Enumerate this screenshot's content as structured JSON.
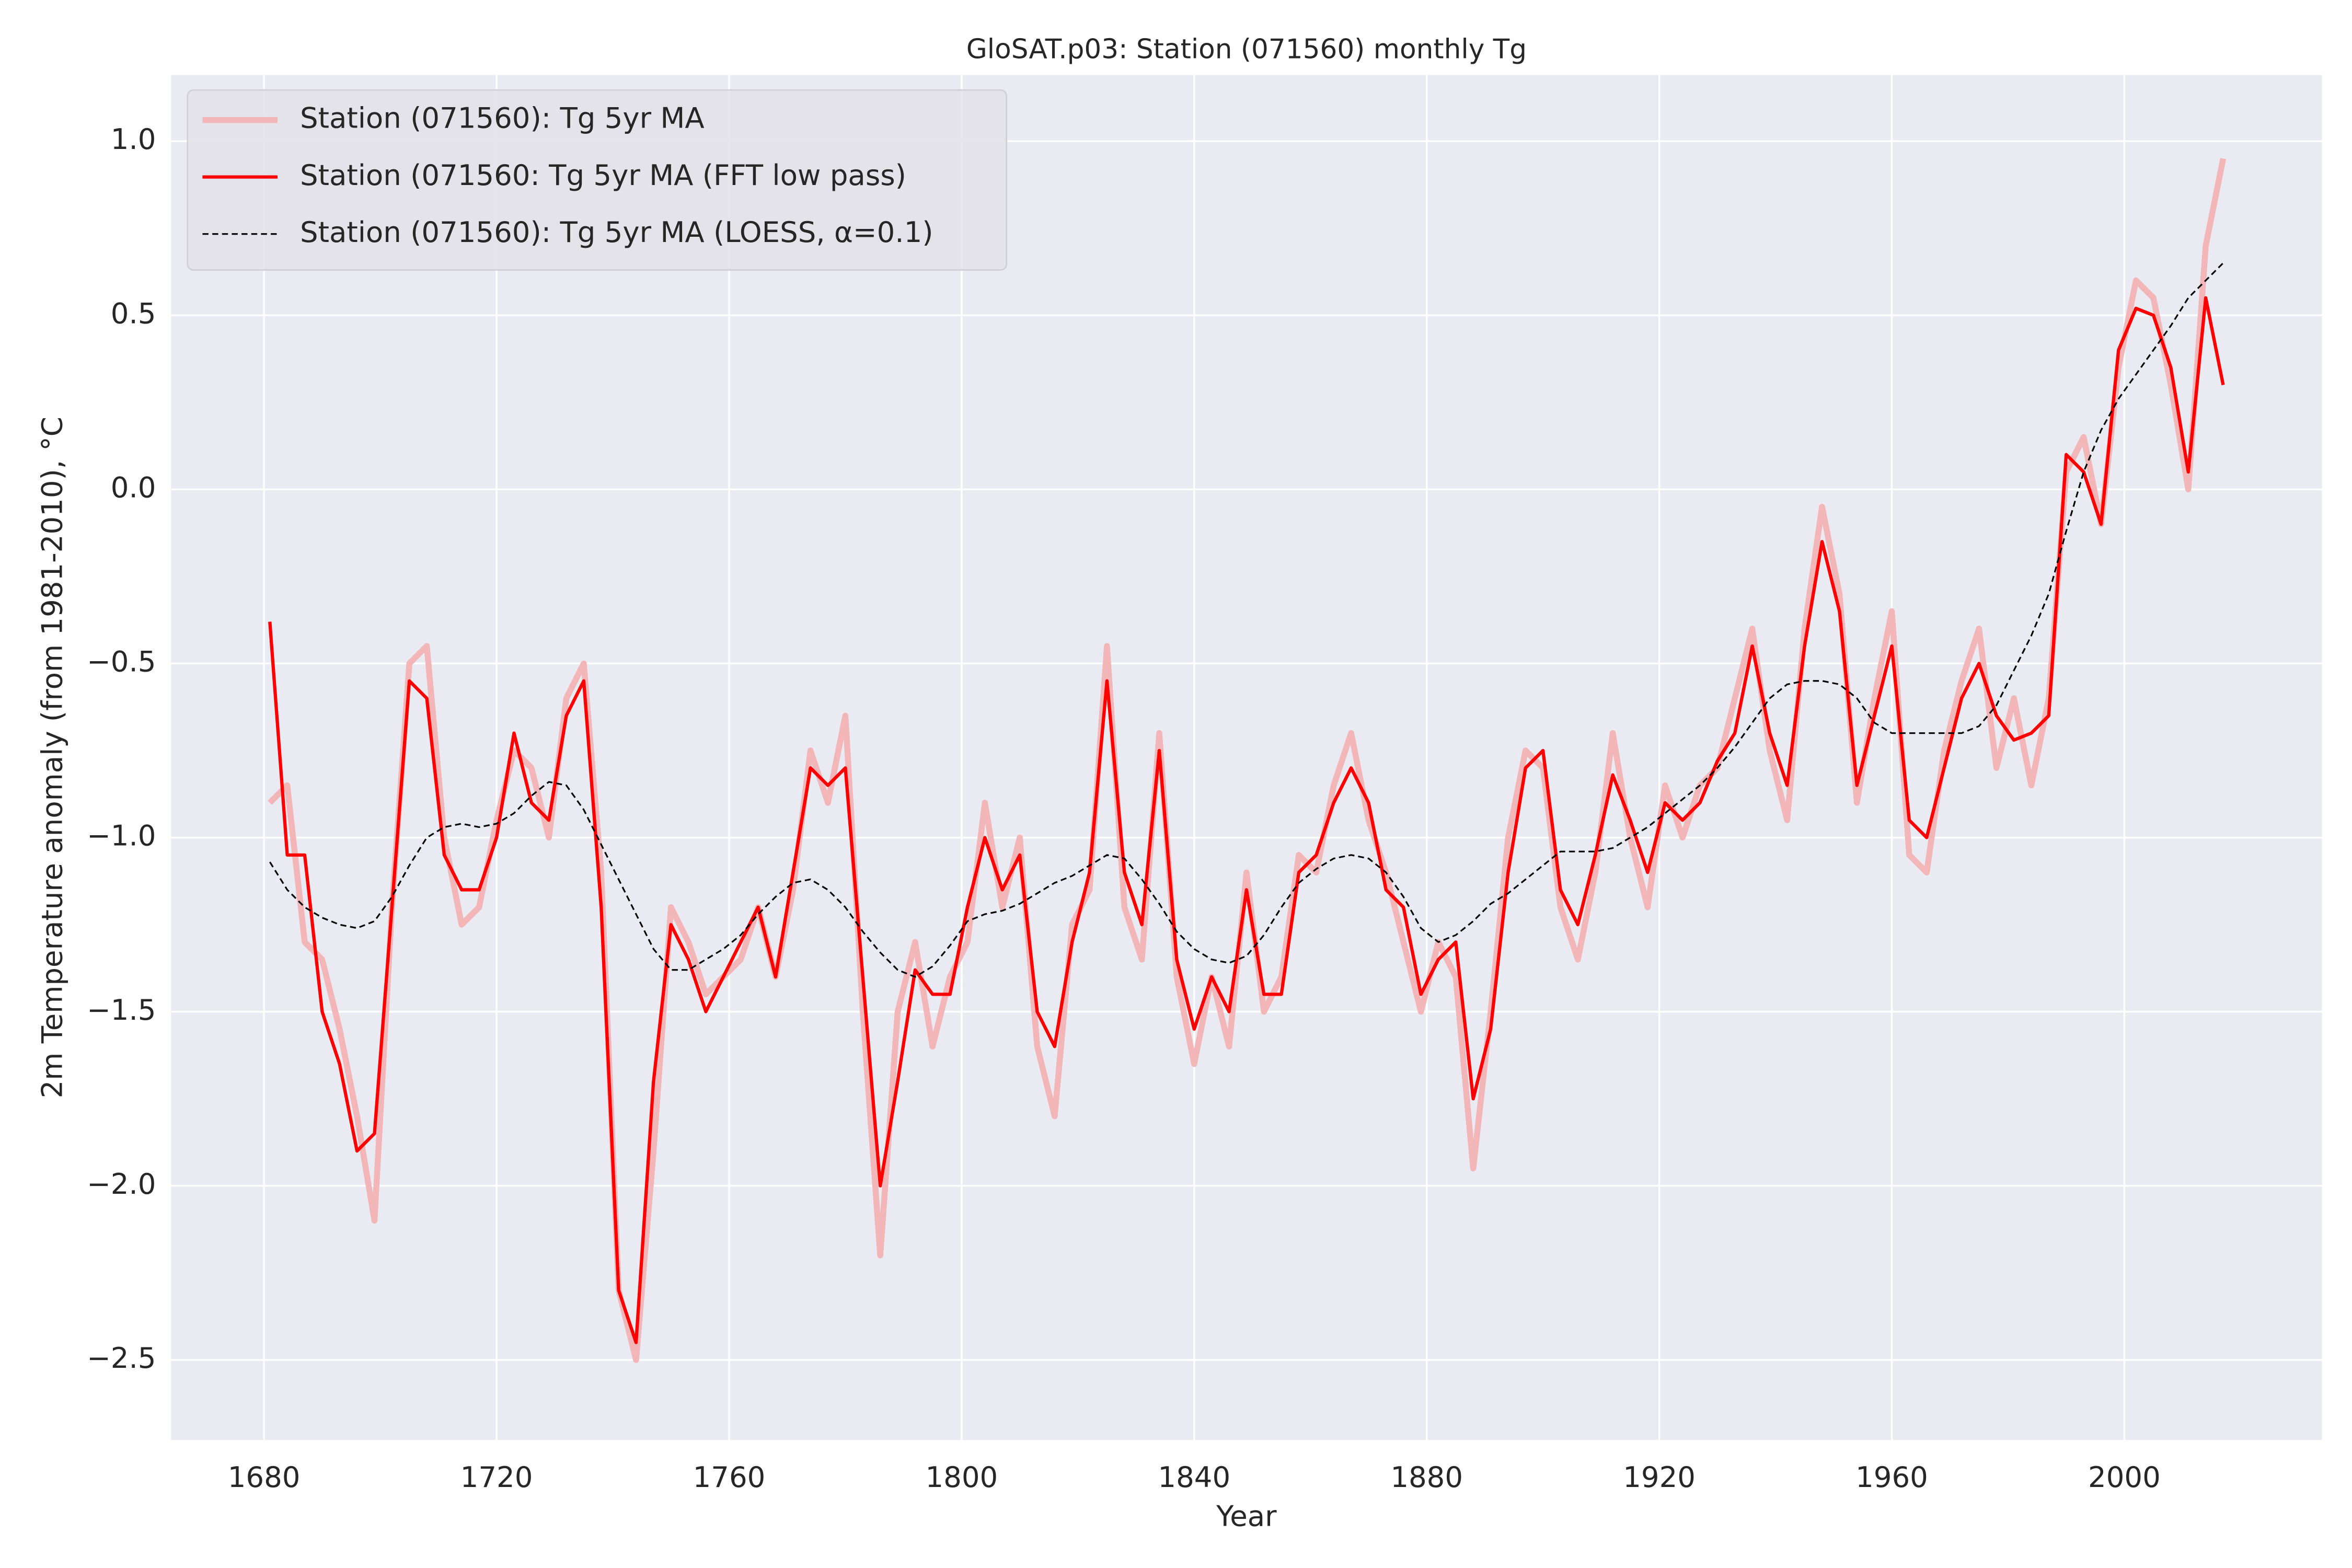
{
  "chart_data": {
    "type": "line",
    "title": "GloSAT.p03: Station (071560) monthly Tg",
    "x_label": "Year",
    "y_label": "2m Temperature anomaly (from 1981-2010), °C",
    "x": [
      1681,
      1684,
      1687,
      1690,
      1693,
      1696,
      1699,
      1702,
      1705,
      1708,
      1711,
      1714,
      1717,
      1720,
      1723,
      1726,
      1729,
      1732,
      1735,
      1738,
      1741,
      1744,
      1747,
      1750,
      1753,
      1756,
      1759,
      1762,
      1765,
      1768,
      1771,
      1774,
      1777,
      1780,
      1783,
      1786,
      1789,
      1792,
      1795,
      1798,
      1801,
      1804,
      1807,
      1810,
      1813,
      1816,
      1819,
      1822,
      1825,
      1828,
      1831,
      1834,
      1837,
      1840,
      1843,
      1846,
      1849,
      1852,
      1855,
      1858,
      1861,
      1864,
      1867,
      1870,
      1873,
      1876,
      1879,
      1882,
      1885,
      1888,
      1891,
      1894,
      1897,
      1900,
      1903,
      1906,
      1909,
      1912,
      1915,
      1918,
      1921,
      1924,
      1927,
      1930,
      1933,
      1936,
      1939,
      1942,
      1945,
      1948,
      1951,
      1954,
      1957,
      1960,
      1963,
      1966,
      1969,
      1972,
      1975,
      1978,
      1981,
      1984,
      1987,
      1990,
      1993,
      1996,
      1999,
      2002,
      2005,
      2008,
      2011,
      2014,
      2017
    ],
    "series": [
      {
        "name": "Station (071560): Tg 5yr MA",
        "color": "#f2b5b8",
        "style": "solid",
        "values": [
          -0.9,
          -0.85,
          -1.3,
          -1.35,
          -1.55,
          -1.8,
          -2.1,
          -1.2,
          -0.5,
          -0.45,
          -1.0,
          -1.25,
          -1.2,
          -0.95,
          -0.75,
          -0.8,
          -1.0,
          -0.6,
          -0.5,
          -1.1,
          -2.3,
          -2.5,
          -1.9,
          -1.2,
          -1.3,
          -1.45,
          -1.4,
          -1.35,
          -1.2,
          -1.4,
          -1.15,
          -0.75,
          -0.9,
          -0.65,
          -1.5,
          -2.2,
          -1.5,
          -1.3,
          -1.6,
          -1.4,
          -1.3,
          -0.9,
          -1.2,
          -1.0,
          -1.6,
          -1.8,
          -1.25,
          -1.15,
          -0.45,
          -1.2,
          -1.35,
          -0.7,
          -1.4,
          -1.65,
          -1.4,
          -1.6,
          -1.1,
          -1.5,
          -1.4,
          -1.05,
          -1.1,
          -0.85,
          -0.7,
          -0.95,
          -1.1,
          -1.3,
          -1.5,
          -1.3,
          -1.4,
          -1.95,
          -1.5,
          -1.0,
          -0.75,
          -0.8,
          -1.2,
          -1.35,
          -1.1,
          -0.7,
          -1.0,
          -1.2,
          -0.85,
          -1.0,
          -0.85,
          -0.8,
          -0.6,
          -0.4,
          -0.75,
          -0.95,
          -0.4,
          -0.05,
          -0.3,
          -0.9,
          -0.6,
          -0.35,
          -1.05,
          -1.1,
          -0.75,
          -0.55,
          -0.4,
          -0.8,
          -0.6,
          -0.85,
          -0.6,
          0.05,
          0.15,
          -0.1,
          0.35,
          0.6,
          0.55,
          0.3,
          0.0,
          0.7,
          0.95
        ]
      },
      {
        "name": "Station (071560: Tg 5yr MA (FFT low pass)",
        "color": "#ff0000",
        "style": "solid",
        "values": [
          -0.38,
          -1.05,
          -1.05,
          -1.5,
          -1.65,
          -1.9,
          -1.85,
          -1.2,
          -0.55,
          -0.6,
          -1.05,
          -1.15,
          -1.15,
          -1.0,
          -0.7,
          -0.9,
          -0.95,
          -0.65,
          -0.55,
          -1.2,
          -2.3,
          -2.45,
          -1.7,
          -1.25,
          -1.35,
          -1.5,
          -1.4,
          -1.3,
          -1.2,
          -1.4,
          -1.1,
          -0.8,
          -0.85,
          -0.8,
          -1.4,
          -2.0,
          -1.7,
          -1.38,
          -1.45,
          -1.45,
          -1.2,
          -1.0,
          -1.15,
          -1.05,
          -1.5,
          -1.6,
          -1.3,
          -1.1,
          -0.55,
          -1.1,
          -1.25,
          -0.75,
          -1.35,
          -1.55,
          -1.4,
          -1.5,
          -1.15,
          -1.45,
          -1.45,
          -1.1,
          -1.05,
          -0.9,
          -0.8,
          -0.9,
          -1.15,
          -1.2,
          -1.45,
          -1.35,
          -1.3,
          -1.75,
          -1.55,
          -1.1,
          -0.8,
          -0.75,
          -1.15,
          -1.25,
          -1.05,
          -0.82,
          -0.95,
          -1.1,
          -0.9,
          -0.95,
          -0.9,
          -0.78,
          -0.7,
          -0.45,
          -0.7,
          -0.85,
          -0.45,
          -0.15,
          -0.35,
          -0.85,
          -0.65,
          -0.45,
          -0.95,
          -1.0,
          -0.8,
          -0.6,
          -0.5,
          -0.65,
          -0.72,
          -0.7,
          -0.65,
          0.1,
          0.05,
          -0.1,
          0.4,
          0.52,
          0.5,
          0.35,
          0.05,
          0.55,
          0.3
        ]
      },
      {
        "name": "Station (071560): Tg 5yr MA (LOESS, α=0.1)",
        "color": "#000000",
        "style": "dashed",
        "values": [
          -1.07,
          -1.15,
          -1.2,
          -1.23,
          -1.25,
          -1.26,
          -1.24,
          -1.17,
          -1.08,
          -1.0,
          -0.97,
          -0.96,
          -0.97,
          -0.96,
          -0.93,
          -0.88,
          -0.84,
          -0.85,
          -0.92,
          -1.02,
          -1.12,
          -1.22,
          -1.32,
          -1.38,
          -1.38,
          -1.35,
          -1.32,
          -1.28,
          -1.22,
          -1.17,
          -1.13,
          -1.12,
          -1.15,
          -1.2,
          -1.27,
          -1.33,
          -1.38,
          -1.4,
          -1.37,
          -1.31,
          -1.24,
          -1.22,
          -1.21,
          -1.19,
          -1.16,
          -1.13,
          -1.11,
          -1.08,
          -1.05,
          -1.06,
          -1.12,
          -1.19,
          -1.27,
          -1.32,
          -1.35,
          -1.36,
          -1.34,
          -1.28,
          -1.2,
          -1.13,
          -1.09,
          -1.06,
          -1.05,
          -1.06,
          -1.1,
          -1.17,
          -1.26,
          -1.3,
          -1.28,
          -1.24,
          -1.19,
          -1.16,
          -1.12,
          -1.08,
          -1.04,
          -1.04,
          -1.04,
          -1.03,
          -1.0,
          -0.97,
          -0.93,
          -0.89,
          -0.85,
          -0.8,
          -0.74,
          -0.67,
          -0.6,
          -0.56,
          -0.55,
          -0.55,
          -0.56,
          -0.6,
          -0.67,
          -0.7,
          -0.7,
          -0.7,
          -0.7,
          -0.7,
          -0.68,
          -0.62,
          -0.52,
          -0.42,
          -0.3,
          -0.12,
          0.05,
          0.17,
          0.26,
          0.33,
          0.4,
          0.47,
          0.55,
          0.6,
          0.65
        ]
      }
    ],
    "xlim": [
      1664,
      2034
    ],
    "xticks": [
      1680,
      1720,
      1760,
      1800,
      1840,
      1880,
      1920,
      1960,
      2000
    ],
    "ylim": [
      -2.73,
      1.19
    ],
    "yticks": [
      {
        "value": -2.5,
        "label": "−2.5"
      },
      {
        "value": -2,
        "label": "−2.0"
      },
      {
        "value": -1.5,
        "label": "−1.5"
      },
      {
        "value": -1,
        "label": "−1.0"
      },
      {
        "value": -0.5,
        "label": "−0.5"
      },
      {
        "value": 0,
        "label": "0.0"
      },
      0.5,
      {
        "value": 1,
        "label": "1.0"
      }
    ],
    "grid": true,
    "legend": "upper left"
  }
}
